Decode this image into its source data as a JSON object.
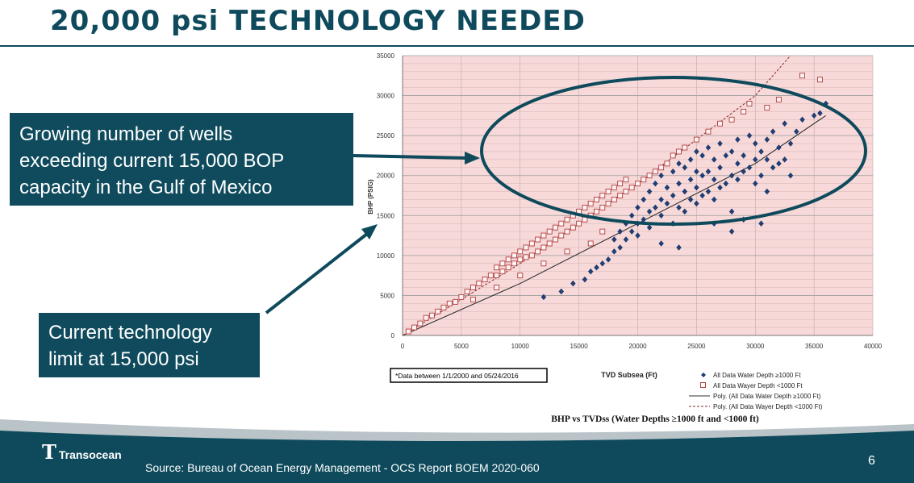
{
  "slide": {
    "title": "20,000 psi TECHNOLOGY NEEDED",
    "page_number": "6",
    "source": "Source: Bureau of Ocean Energy Management - OCS Report BOEM 2020-060",
    "logo_text": "Transocean"
  },
  "callouts": {
    "top_lines": [
      "Growing number of wells",
      "exceeding current 15,000 BOP",
      "capacity in the Gulf of Mexico"
    ],
    "bottom_lines": [
      "Current technology",
      "limit at 15,000 psi"
    ]
  },
  "colors": {
    "brand_teal": "#0e4a5c",
    "plot_bg": "#f7d9d9",
    "deep_series": "#1f3f77",
    "shallow_series": "#b23b3b"
  },
  "chart_data": {
    "type": "scatter",
    "title": "BHP vs TVDss (Water Depths ≥1000 ft and <1000 ft)",
    "xlabel": "TVD Subsea (Ft)",
    "ylabel": "BHP (PSIG)",
    "xlim": [
      0,
      40000
    ],
    "ylim": [
      0,
      35000
    ],
    "x_ticks": [
      0,
      5000,
      10000,
      15000,
      20000,
      25000,
      30000,
      35000,
      40000
    ],
    "y_ticks": [
      0,
      5000,
      10000,
      15000,
      20000,
      25000,
      30000,
      35000
    ],
    "grid": true,
    "date_note": "*Data between 1/1/2000 and 05/24/2016",
    "legend": [
      "All Data Water Depth ≥1000 Ft",
      "All Data Wayer Depth <1000 Ft",
      "Poly. (All Data Water Depth ≥1000 Ft)",
      "Poly. (All Data Wayer Depth <1000 Ft)"
    ],
    "series": [
      {
        "name": "All Data Water Depth ≥1000 Ft",
        "marker": "diamond",
        "points": [
          [
            12000,
            4800
          ],
          [
            13500,
            5500
          ],
          [
            14500,
            6500
          ],
          [
            15500,
            7000
          ],
          [
            16000,
            8000
          ],
          [
            16500,
            8500
          ],
          [
            17000,
            9000
          ],
          [
            17500,
            9500
          ],
          [
            18000,
            10500
          ],
          [
            18000,
            12000
          ],
          [
            18500,
            11000
          ],
          [
            18500,
            13000
          ],
          [
            19000,
            12000
          ],
          [
            19000,
            14000
          ],
          [
            19500,
            13000
          ],
          [
            19500,
            15000
          ],
          [
            20000,
            12500
          ],
          [
            20000,
            14000
          ],
          [
            20000,
            16000
          ],
          [
            20500,
            14500
          ],
          [
            20500,
            17000
          ],
          [
            21000,
            13500
          ],
          [
            21000,
            15500
          ],
          [
            21000,
            18000
          ],
          [
            21500,
            16000
          ],
          [
            21500,
            19000
          ],
          [
            22000,
            15000
          ],
          [
            22000,
            17000
          ],
          [
            22000,
            20000
          ],
          [
            22500,
            16500
          ],
          [
            22500,
            18500
          ],
          [
            23000,
            14000
          ],
          [
            23000,
            17500
          ],
          [
            23000,
            20500
          ],
          [
            23500,
            16000
          ],
          [
            23500,
            19000
          ],
          [
            23500,
            21500
          ],
          [
            24000,
            15500
          ],
          [
            24000,
            18000
          ],
          [
            24000,
            21000
          ],
          [
            24500,
            17000
          ],
          [
            24500,
            19500
          ],
          [
            24500,
            22000
          ],
          [
            25000,
            16500
          ],
          [
            25000,
            18500
          ],
          [
            25000,
            20500
          ],
          [
            25000,
            23000
          ],
          [
            25500,
            17500
          ],
          [
            25500,
            20000
          ],
          [
            25500,
            22500
          ],
          [
            26000,
            18000
          ],
          [
            26000,
            20500
          ],
          [
            26000,
            23500
          ],
          [
            26500,
            17000
          ],
          [
            26500,
            19500
          ],
          [
            26500,
            22000
          ],
          [
            27000,
            18500
          ],
          [
            27000,
            21000
          ],
          [
            27000,
            24000
          ],
          [
            27500,
            19000
          ],
          [
            27500,
            22500
          ],
          [
            28000,
            15500
          ],
          [
            28000,
            20000
          ],
          [
            28000,
            23000
          ],
          [
            28500,
            19500
          ],
          [
            28500,
            21500
          ],
          [
            28500,
            24500
          ],
          [
            29000,
            14500
          ],
          [
            29000,
            20500
          ],
          [
            29000,
            22500
          ],
          [
            29500,
            21000
          ],
          [
            29500,
            25000
          ],
          [
            30000,
            19000
          ],
          [
            30000,
            22000
          ],
          [
            30000,
            24000
          ],
          [
            30500,
            20000
          ],
          [
            30500,
            23000
          ],
          [
            31000,
            18000
          ],
          [
            31000,
            22000
          ],
          [
            31000,
            24500
          ],
          [
            31500,
            21000
          ],
          [
            31500,
            25500
          ],
          [
            32000,
            21500
          ],
          [
            32000,
            23500
          ],
          [
            32500,
            22000
          ],
          [
            32500,
            26500
          ],
          [
            33000,
            24000
          ],
          [
            33500,
            25500
          ],
          [
            34000,
            27000
          ],
          [
            35000,
            27500
          ],
          [
            35500,
            27800
          ],
          [
            36000,
            29000
          ],
          [
            22000,
            11500
          ],
          [
            23500,
            11000
          ],
          [
            26500,
            14000
          ],
          [
            28000,
            13000
          ],
          [
            30500,
            14000
          ],
          [
            33000,
            20000
          ]
        ]
      },
      {
        "name": "All Data Wayer Depth <1000 Ft",
        "marker": "square",
        "points": [
          [
            500,
            500
          ],
          [
            1000,
            1000
          ],
          [
            1500,
            1500
          ],
          [
            2000,
            2200
          ],
          [
            2500,
            2500
          ],
          [
            3000,
            3000
          ],
          [
            3500,
            3500
          ],
          [
            4000,
            4000
          ],
          [
            4500,
            4200
          ],
          [
            5000,
            4800
          ],
          [
            5500,
            5500
          ],
          [
            6000,
            6000
          ],
          [
            6500,
            6500
          ],
          [
            7000,
            7000
          ],
          [
            7500,
            7500
          ],
          [
            8000,
            7500
          ],
          [
            8000,
            8500
          ],
          [
            8500,
            8000
          ],
          [
            8500,
            9000
          ],
          [
            9000,
            8500
          ],
          [
            9000,
            9500
          ],
          [
            9500,
            9000
          ],
          [
            9500,
            10000
          ],
          [
            10000,
            9500
          ],
          [
            10000,
            10500
          ],
          [
            10500,
            9800
          ],
          [
            10500,
            11000
          ],
          [
            11000,
            10000
          ],
          [
            11000,
            11500
          ],
          [
            11500,
            10500
          ],
          [
            11500,
            12000
          ],
          [
            12000,
            11000
          ],
          [
            12000,
            12500
          ],
          [
            12500,
            11500
          ],
          [
            12500,
            13000
          ],
          [
            13000,
            12000
          ],
          [
            13000,
            13500
          ],
          [
            13500,
            12500
          ],
          [
            13500,
            14000
          ],
          [
            14000,
            13000
          ],
          [
            14000,
            14500
          ],
          [
            14500,
            13500
          ],
          [
            14500,
            15000
          ],
          [
            15000,
            14000
          ],
          [
            15000,
            15500
          ],
          [
            15500,
            14500
          ],
          [
            15500,
            16000
          ],
          [
            16000,
            15000
          ],
          [
            16000,
            16500
          ],
          [
            16500,
            15500
          ],
          [
            16500,
            17000
          ],
          [
            17000,
            16000
          ],
          [
            17000,
            17500
          ],
          [
            17500,
            16500
          ],
          [
            17500,
            18000
          ],
          [
            18000,
            17000
          ],
          [
            18000,
            18500
          ],
          [
            18500,
            17500
          ],
          [
            18500,
            19000
          ],
          [
            19000,
            18000
          ],
          [
            19000,
            19500
          ],
          [
            19500,
            18500
          ],
          [
            20000,
            19000
          ],
          [
            20500,
            19500
          ],
          [
            21000,
            20000
          ],
          [
            21500,
            20500
          ],
          [
            22000,
            21000
          ],
          [
            22500,
            21500
          ],
          [
            23000,
            22500
          ],
          [
            23500,
            23000
          ],
          [
            24000,
            23500
          ],
          [
            25000,
            24500
          ],
          [
            26000,
            25500
          ],
          [
            27000,
            26500
          ],
          [
            28000,
            27000
          ],
          [
            29000,
            28000
          ],
          [
            29500,
            29000
          ],
          [
            31000,
            28500
          ],
          [
            32000,
            29500
          ],
          [
            34000,
            32500
          ],
          [
            35500,
            32000
          ],
          [
            6000,
            4500
          ],
          [
            8000,
            6000
          ],
          [
            10000,
            7500
          ],
          [
            12000,
            9000
          ],
          [
            14000,
            10500
          ],
          [
            16000,
            11500
          ],
          [
            17000,
            13000
          ]
        ]
      }
    ],
    "trendlines": [
      {
        "name": "Poly. (All Data Water Depth ≥1000 Ft)",
        "style": "solid",
        "points": [
          [
            0,
            0
          ],
          [
            10000,
            6500
          ],
          [
            20000,
            14000
          ],
          [
            30000,
            21500
          ],
          [
            36000,
            27500
          ]
        ]
      },
      {
        "name": "Poly. (All Data Wayer Depth <1000 Ft)",
        "style": "dashed",
        "points": [
          [
            0,
            0
          ],
          [
            10000,
            9000
          ],
          [
            20000,
            19000
          ],
          [
            30000,
            30000
          ],
          [
            33000,
            35000
          ]
        ]
      }
    ]
  }
}
